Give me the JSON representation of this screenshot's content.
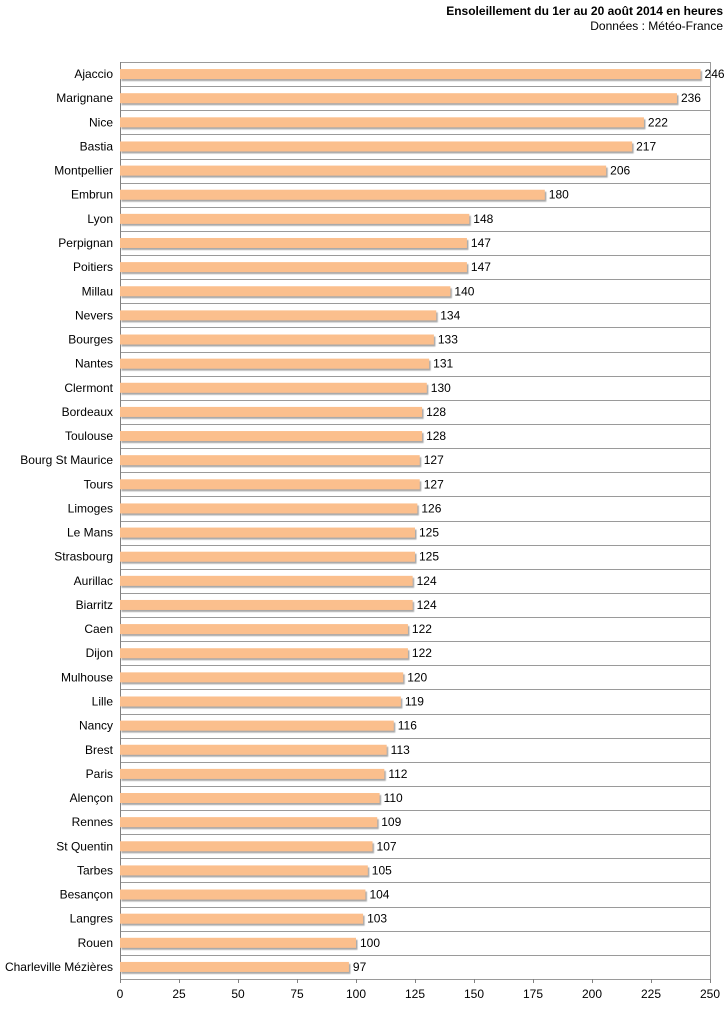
{
  "chart_data": {
    "type": "bar",
    "orientation": "horizontal",
    "title": "Ensoleillement  du 1er au 20 août 2014 en heures",
    "subtitle": "Données : Météo-France",
    "xlabel": "",
    "ylabel": "",
    "xlim": [
      0,
      250
    ],
    "xticks": [
      0,
      25,
      50,
      75,
      100,
      125,
      150,
      175,
      200,
      225,
      250
    ],
    "grid": true,
    "bar_color": "#fbbf8d",
    "categories": [
      "Ajaccio",
      "Marignane",
      "Nice",
      "Bastia",
      "Montpellier",
      "Embrun",
      "Lyon",
      "Perpignan",
      "Poitiers",
      "Millau",
      "Nevers",
      "Bourges",
      "Nantes",
      "Clermont",
      "Bordeaux",
      "Toulouse",
      "Bourg St Maurice",
      "Tours",
      "Limoges",
      "Le Mans",
      "Strasbourg",
      "Aurillac",
      "Biarritz",
      "Caen",
      "Dijon",
      "Mulhouse",
      "Lille",
      "Nancy",
      "Brest",
      "Paris",
      "Alençon",
      "Rennes",
      "St Quentin",
      "Tarbes",
      "Besançon",
      "Langres",
      "Rouen",
      "Charleville Mézières"
    ],
    "values": [
      246,
      236,
      222,
      217,
      206,
      180,
      148,
      147,
      147,
      140,
      134,
      133,
      131,
      130,
      128,
      128,
      127,
      127,
      126,
      125,
      125,
      124,
      124,
      122,
      122,
      120,
      119,
      116,
      113,
      112,
      110,
      109,
      107,
      105,
      104,
      103,
      100,
      97
    ]
  }
}
